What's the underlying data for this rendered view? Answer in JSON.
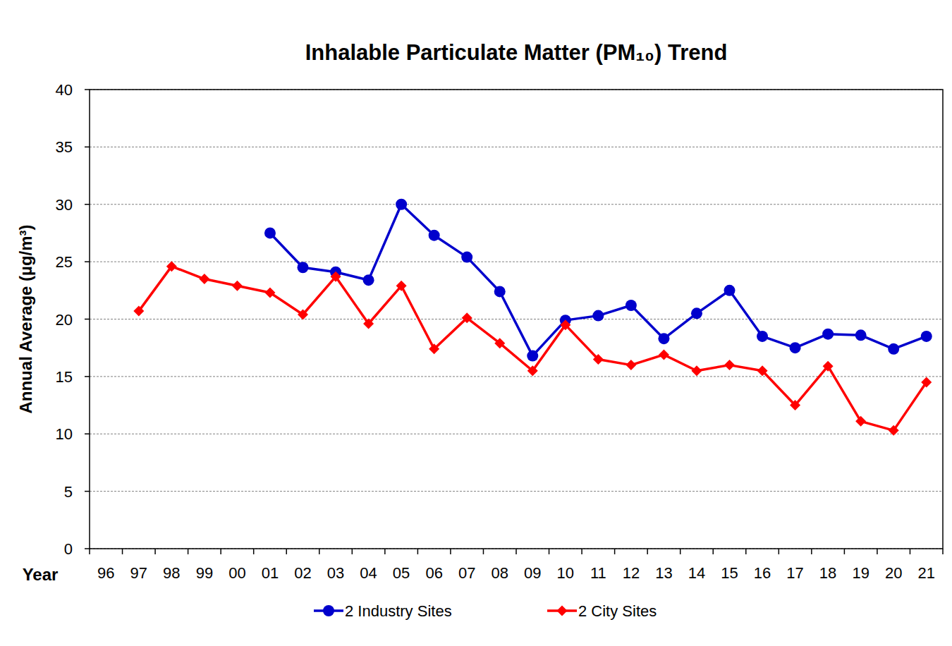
{
  "chart_data": {
    "type": "line",
    "title": "Inhalable Particulate Matter (PM₁₀) Trend",
    "x_label": "Year",
    "y_label": "Annual Average (µg/m³)",
    "categories": [
      "96",
      "97",
      "98",
      "99",
      "00",
      "01",
      "02",
      "03",
      "04",
      "05",
      "06",
      "07",
      "08",
      "09",
      "10",
      "11",
      "12",
      "13",
      "14",
      "15",
      "16",
      "17",
      "18",
      "19",
      "20",
      "21"
    ],
    "series": [
      {
        "name": "2 Industry Sites",
        "color": "#0000cc",
        "marker": "circle",
        "values": [
          null,
          null,
          null,
          null,
          null,
          27.5,
          24.5,
          24.1,
          23.4,
          30.0,
          27.3,
          25.4,
          22.4,
          16.8,
          19.9,
          20.3,
          21.2,
          18.3,
          20.5,
          22.5,
          18.5,
          17.5,
          18.7,
          18.6,
          17.4,
          18.5
        ]
      },
      {
        "name": "2 City Sites",
        "color": "#ff0000",
        "marker": "diamond",
        "values": [
          null,
          20.7,
          24.6,
          23.5,
          22.9,
          22.3,
          20.4,
          23.7,
          19.6,
          22.9,
          17.4,
          20.1,
          17.9,
          15.5,
          19.5,
          16.5,
          16.0,
          16.9,
          15.5,
          16.0,
          15.5,
          12.5,
          15.9,
          11.1,
          10.3,
          14.5
        ]
      }
    ],
    "ylim": [
      0,
      40
    ],
    "yticks": [
      0,
      5,
      10,
      15,
      20,
      25,
      30,
      35,
      40
    ],
    "grid": true,
    "legend": "bottom"
  }
}
